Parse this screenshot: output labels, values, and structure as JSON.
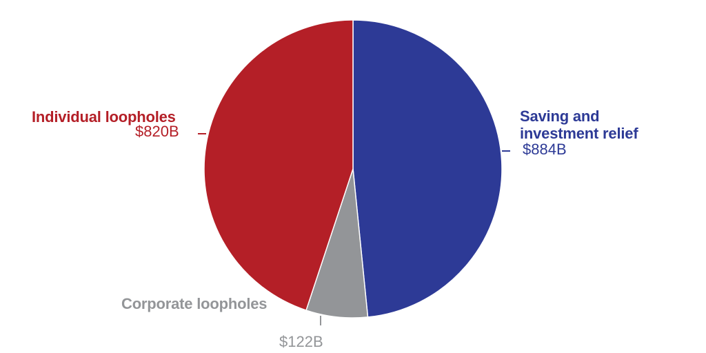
{
  "chart_data": {
    "type": "pie",
    "title": "",
    "units": "billions of USD",
    "slices": [
      {
        "label": "Saving and investment relief",
        "value": 884,
        "display": "$884B",
        "color": "#2d3a96"
      },
      {
        "label": "Corporate loopholes",
        "value": 122,
        "display": "$122B",
        "color": "#939598"
      },
      {
        "label": "Individual loopholes",
        "value": 820,
        "display": "$820B",
        "color": "#b41f27"
      }
    ],
    "start_angle_deg": 0,
    "direction": "clockwise",
    "legend": "none (direct labels)"
  },
  "labels": {
    "saving": {
      "line1": "Saving and",
      "line2": "investment relief",
      "value": "$884B"
    },
    "individual": {
      "name": "Individual loopholes",
      "value": "$820B"
    },
    "corporate": {
      "name": "Corporate loopholes",
      "value": "$122B"
    }
  }
}
